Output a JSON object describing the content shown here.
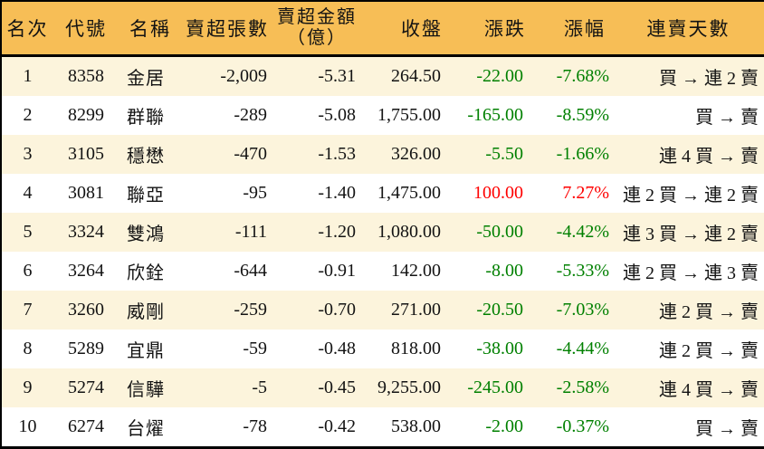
{
  "colors": {
    "header_bg": "#F7BE56",
    "row_alt_bg": "#FCF4DC",
    "row_bg": "#FFFFFF",
    "border": "#000000",
    "text": "#131313",
    "down": "#008000",
    "up": "#FF0000"
  },
  "chart_data": {
    "type": "table",
    "columns": [
      {
        "key": "rank",
        "label": "名次"
      },
      {
        "key": "code",
        "label": "代號"
      },
      {
        "key": "name",
        "label": "名稱"
      },
      {
        "key": "sell_volume",
        "label": "賣超張數"
      },
      {
        "key": "sell_amount",
        "label": "賣超金額",
        "label2": "（億）"
      },
      {
        "key": "close",
        "label": "收盤"
      },
      {
        "key": "change",
        "label": "漲跌"
      },
      {
        "key": "change_pct",
        "label": "漲幅"
      },
      {
        "key": "streak",
        "label": "連賣天數"
      }
    ],
    "rows": [
      {
        "rank": "1",
        "code": "8358",
        "name": "金居",
        "sell_volume": "-2,009",
        "sell_amount": "-5.31",
        "close": "264.50",
        "change": "-22.00",
        "change_pct": "-7.68%",
        "streak": "買 → 連 2 賣"
      },
      {
        "rank": "2",
        "code": "8299",
        "name": "群聯",
        "sell_volume": "-289",
        "sell_amount": "-5.08",
        "close": "1,755.00",
        "change": "-165.00",
        "change_pct": "-8.59%",
        "streak": "買 → 賣"
      },
      {
        "rank": "3",
        "code": "3105",
        "name": "穩懋",
        "sell_volume": "-470",
        "sell_amount": "-1.53",
        "close": "326.00",
        "change": "-5.50",
        "change_pct": "-1.66%",
        "streak": "連 4 買 → 賣"
      },
      {
        "rank": "4",
        "code": "3081",
        "name": "聯亞",
        "sell_volume": "-95",
        "sell_amount": "-1.40",
        "close": "1,475.00",
        "change": "100.00",
        "change_pct": "7.27%",
        "streak": "連 2 買 → 連 2 賣"
      },
      {
        "rank": "5",
        "code": "3324",
        "name": "雙鴻",
        "sell_volume": "-111",
        "sell_amount": "-1.20",
        "close": "1,080.00",
        "change": "-50.00",
        "change_pct": "-4.42%",
        "streak": "連 3 買 → 連 2 賣"
      },
      {
        "rank": "6",
        "code": "3264",
        "name": "欣銓",
        "sell_volume": "-644",
        "sell_amount": "-0.91",
        "close": "142.00",
        "change": "-8.00",
        "change_pct": "-5.33%",
        "streak": "連 2 買 → 連 3 賣"
      },
      {
        "rank": "7",
        "code": "3260",
        "name": "威剛",
        "sell_volume": "-259",
        "sell_amount": "-0.70",
        "close": "271.00",
        "change": "-20.50",
        "change_pct": "-7.03%",
        "streak": "連 2 買 → 賣"
      },
      {
        "rank": "8",
        "code": "5289",
        "name": "宜鼎",
        "sell_volume": "-59",
        "sell_amount": "-0.48",
        "close": "818.00",
        "change": "-38.00",
        "change_pct": "-4.44%",
        "streak": "連 2 買 → 賣"
      },
      {
        "rank": "9",
        "code": "5274",
        "name": "信驊",
        "sell_volume": "-5",
        "sell_amount": "-0.45",
        "close": "9,255.00",
        "change": "-245.00",
        "change_pct": "-2.58%",
        "streak": "連 4 買 → 賣"
      },
      {
        "rank": "10",
        "code": "6274",
        "name": "台燿",
        "sell_volume": "-78",
        "sell_amount": "-0.42",
        "close": "538.00",
        "change": "-2.00",
        "change_pct": "-0.37%",
        "streak": "買 → 賣"
      }
    ]
  }
}
